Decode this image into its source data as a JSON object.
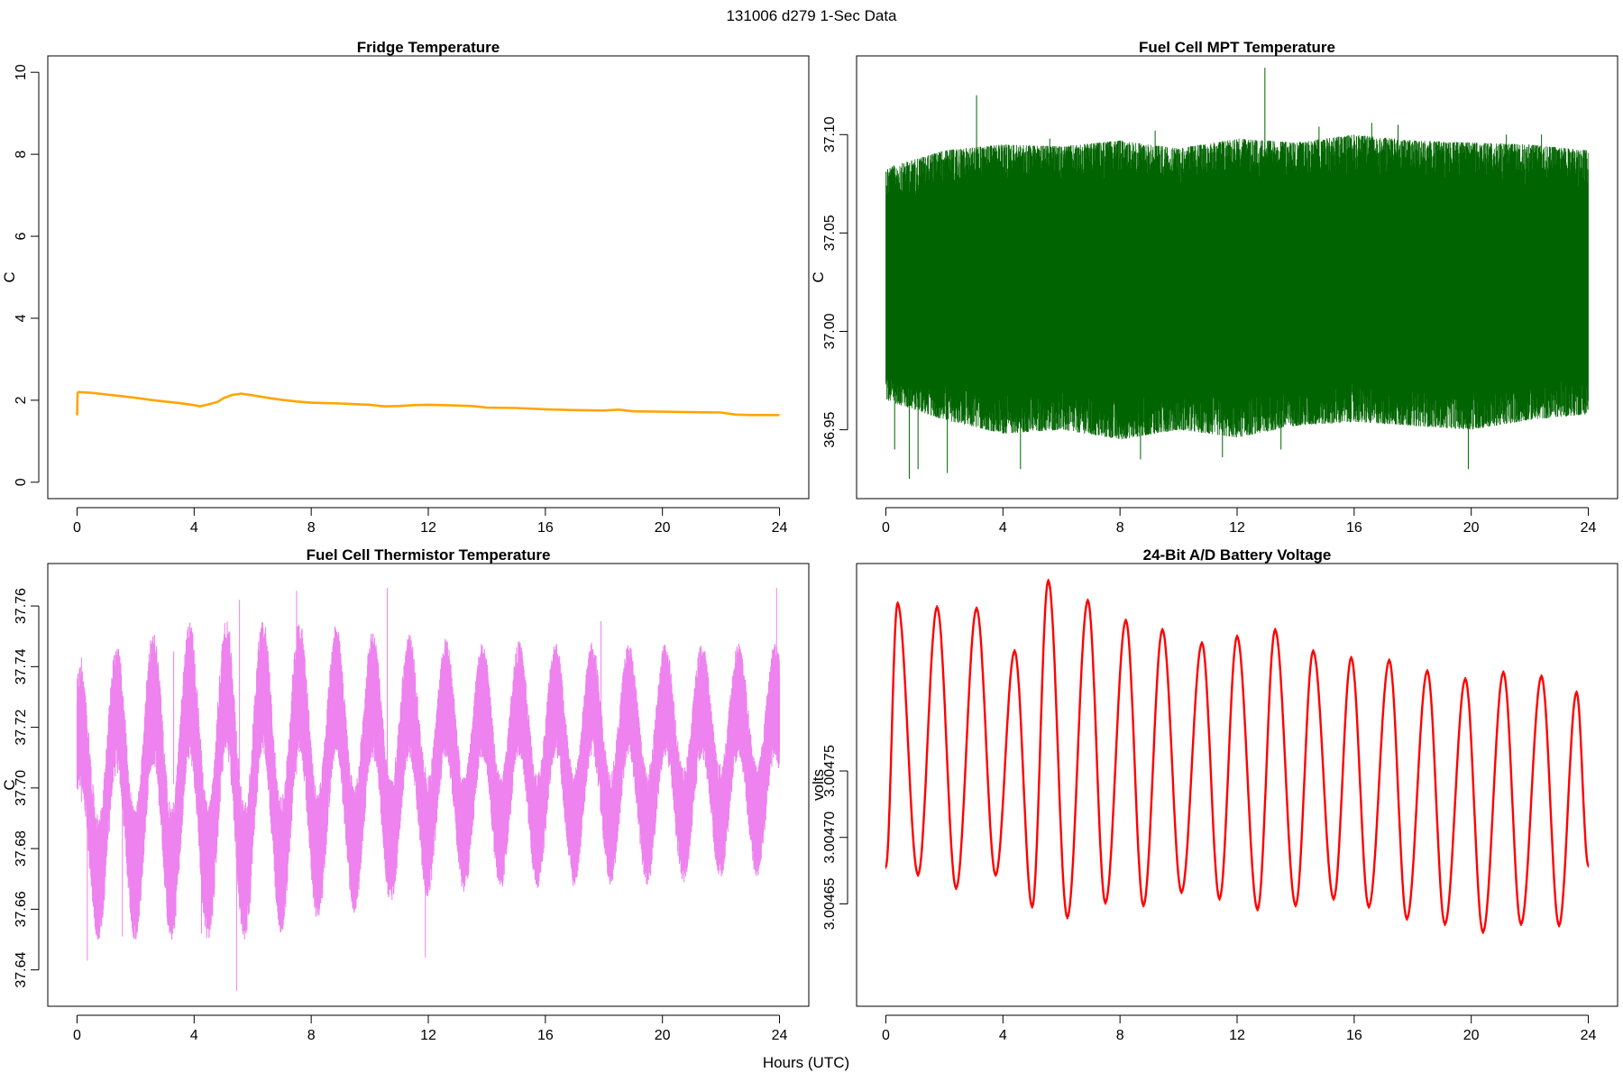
{
  "page": {
    "title": "131006   d279   1-Sec Data",
    "xlabel": "Hours (UTC)"
  },
  "colors": {
    "fridge": "#ffa500",
    "mpt": "#006400",
    "thermistor": "#ee82ee",
    "battery": "#ff0000",
    "axis": "#000000",
    "background": "#ffffff"
  },
  "chart_data": [
    {
      "id": "fridge",
      "type": "line",
      "title": "Fridge Temperature",
      "ylabel": "C",
      "xlim": [
        -1,
        25
      ],
      "ylim": [
        -0.4,
        10.4
      ],
      "x_ticks": [
        0,
        4,
        8,
        12,
        16,
        20,
        24
      ],
      "y_ticks": [
        0,
        2,
        4,
        6,
        8,
        10
      ],
      "y_tick_labels": [
        "0",
        "2",
        "4",
        "6",
        "8",
        "10"
      ],
      "grid": false,
      "series": [
        {
          "color": "#ffa500",
          "x": [
            0,
            0.02,
            0.05,
            0.5,
            1,
            1.5,
            2,
            2.5,
            3,
            3.5,
            4,
            4.2,
            4.5,
            4.8,
            5,
            5.3,
            5.6,
            6,
            6.5,
            7,
            7.5,
            8,
            9,
            10,
            10.5,
            11,
            11.5,
            12,
            12.5,
            13,
            13.5,
            14,
            15,
            16,
            17,
            18,
            18.5,
            19,
            20,
            21,
            22,
            22.5,
            23,
            24
          ],
          "y": [
            1.63,
            2.18,
            2.2,
            2.18,
            2.14,
            2.1,
            2.06,
            2.01,
            1.97,
            1.93,
            1.88,
            1.85,
            1.9,
            1.96,
            2.05,
            2.13,
            2.16,
            2.12,
            2.06,
            2.01,
            1.97,
            1.94,
            1.92,
            1.89,
            1.85,
            1.86,
            1.88,
            1.89,
            1.88,
            1.87,
            1.86,
            1.82,
            1.81,
            1.78,
            1.76,
            1.75,
            1.77,
            1.73,
            1.72,
            1.71,
            1.7,
            1.65,
            1.64,
            1.64
          ]
        }
      ]
    },
    {
      "id": "mpt",
      "type": "line",
      "title": "Fuel Cell MPT Temperature",
      "ylabel": "C",
      "xlim": [
        -1,
        25
      ],
      "ylim": [
        36.915,
        37.14
      ],
      "x_ticks": [
        0,
        4,
        8,
        12,
        16,
        20,
        24
      ],
      "y_ticks": [
        36.95,
        37.0,
        37.05,
        37.1
      ],
      "y_tick_labels": [
        "36.95",
        "37.00",
        "37.05",
        "37.10"
      ],
      "grid": false,
      "series": [
        {
          "color": "#006400",
          "envelope_x": [
            0,
            2,
            4,
            6,
            8,
            10,
            12,
            14,
            16,
            18,
            20,
            22,
            24
          ],
          "y_core_low": [
            36.988,
            36.985,
            36.983,
            36.984,
            36.982,
            36.983,
            36.981,
            36.982,
            36.983,
            36.982,
            36.981,
            36.982,
            36.983
          ],
          "y_core_high": [
            37.06,
            37.062,
            37.064,
            37.063,
            37.066,
            37.064,
            37.067,
            37.066,
            37.066,
            37.067,
            37.066,
            37.067,
            37.066
          ],
          "y_outer_low": [
            36.965,
            36.955,
            36.948,
            36.95,
            36.945,
            36.95,
            36.946,
            36.952,
            36.954,
            36.952,
            36.95,
            36.955,
            36.958
          ],
          "y_outer_high": [
            37.083,
            37.092,
            37.095,
            37.094,
            37.097,
            37.093,
            37.098,
            37.096,
            37.1,
            37.097,
            37.096,
            37.095,
            37.092
          ],
          "spikes_x": [
            0.8,
            1.1,
            2.1,
            3.1,
            5.6,
            9.2,
            11.5,
            12.95,
            14.8,
            16.6,
            17.5,
            19.9,
            21.2,
            0.3,
            4.6,
            8.7,
            13.5,
            22.4
          ],
          "spikes_y": [
            36.925,
            36.93,
            36.928,
            37.12,
            37.098,
            37.102,
            36.936,
            37.134,
            37.104,
            37.106,
            37.105,
            36.93,
            37.1,
            36.94,
            36.93,
            36.935,
            36.94,
            37.1
          ]
        }
      ]
    },
    {
      "id": "thermistor",
      "type": "line",
      "title": "Fuel Cell Thermistor Temperature",
      "ylabel": "C",
      "xlim": [
        -1,
        25
      ],
      "ylim": [
        37.628,
        37.774
      ],
      "x_ticks": [
        0,
        4,
        8,
        12,
        16,
        20,
        24
      ],
      "y_ticks": [
        37.64,
        37.66,
        37.68,
        37.7,
        37.72,
        37.74,
        37.76
      ],
      "y_tick_labels": [
        "37.64",
        "37.66",
        "37.68",
        "37.70",
        "37.72",
        "37.74",
        "37.76"
      ],
      "grid": false,
      "series": [
        {
          "color": "#ee82ee",
          "period_hours": 1.25,
          "envelope_x": [
            0,
            2,
            4,
            6,
            8,
            10,
            12,
            14,
            16,
            18,
            20,
            22,
            24
          ],
          "center": [
            37.695,
            37.7,
            37.702,
            37.703,
            37.705,
            37.706,
            37.707,
            37.707,
            37.708,
            37.708,
            37.708,
            37.709,
            37.709
          ],
          "osc_amplitude": [
            0.025,
            0.029,
            0.03,
            0.031,
            0.028,
            0.025,
            0.023,
            0.022,
            0.022,
            0.021,
            0.021,
            0.02,
            0.02
          ],
          "noise_amplitude": [
            0.02,
            0.022,
            0.023,
            0.023,
            0.022,
            0.021,
            0.02,
            0.019,
            0.019,
            0.019,
            0.019,
            0.019,
            0.019
          ],
          "spikes_x": [
            0.15,
            0.35,
            1.55,
            5.45,
            5.55,
            7.5,
            10.6,
            11.9,
            4.25,
            23.9,
            3.3,
            17.9
          ],
          "spikes_y": [
            37.743,
            37.643,
            37.651,
            37.633,
            37.762,
            37.765,
            37.766,
            37.644,
            37.652,
            37.766,
            37.745,
            37.755
          ]
        }
      ]
    },
    {
      "id": "battery",
      "type": "line",
      "title": "24-Bit A/D Battery Voltage",
      "ylabel": "volts",
      "xlim": [
        -1,
        25
      ],
      "ylim": [
        3.004573,
        3.004906
      ],
      "x_ticks": [
        0,
        4,
        8,
        12,
        16,
        20,
        24
      ],
      "y_ticks": [
        3.00465,
        3.0047,
        3.00475
      ],
      "y_tick_labels": [
        "3.00465",
        "3.00470",
        "3.00475"
      ],
      "grid": false,
      "series": [
        {
          "color": "#ff0000",
          "x": [
            0,
            0.4,
            1.1,
            1.75,
            2.4,
            3.1,
            3.75,
            4.4,
            5.0,
            5.55,
            6.2,
            6.9,
            7.5,
            8.2,
            8.8,
            9.45,
            10.1,
            10.8,
            11.4,
            12.0,
            12.7,
            13.3,
            14.0,
            14.6,
            15.3,
            15.9,
            16.5,
            17.2,
            17.8,
            18.5,
            19.1,
            19.8,
            20.4,
            21.1,
            21.7,
            22.4,
            23.0,
            23.6,
            24.0
          ],
          "y": [
            3.004678,
            3.004876,
            3.004672,
            3.004873,
            3.004662,
            3.004872,
            3.004672,
            3.00484,
            3.004648,
            3.004893,
            3.00464,
            3.004878,
            3.004651,
            3.004863,
            3.004649,
            3.004856,
            3.004659,
            3.004846,
            3.004654,
            3.004851,
            3.004646,
            3.004856,
            3.004649,
            3.00484,
            3.004654,
            3.004835,
            3.004648,
            3.004833,
            3.004639,
            3.004825,
            3.004635,
            3.004819,
            3.004629,
            3.004824,
            3.004635,
            3.004821,
            3.004634,
            3.004809,
            3.004679
          ]
        }
      ]
    }
  ]
}
